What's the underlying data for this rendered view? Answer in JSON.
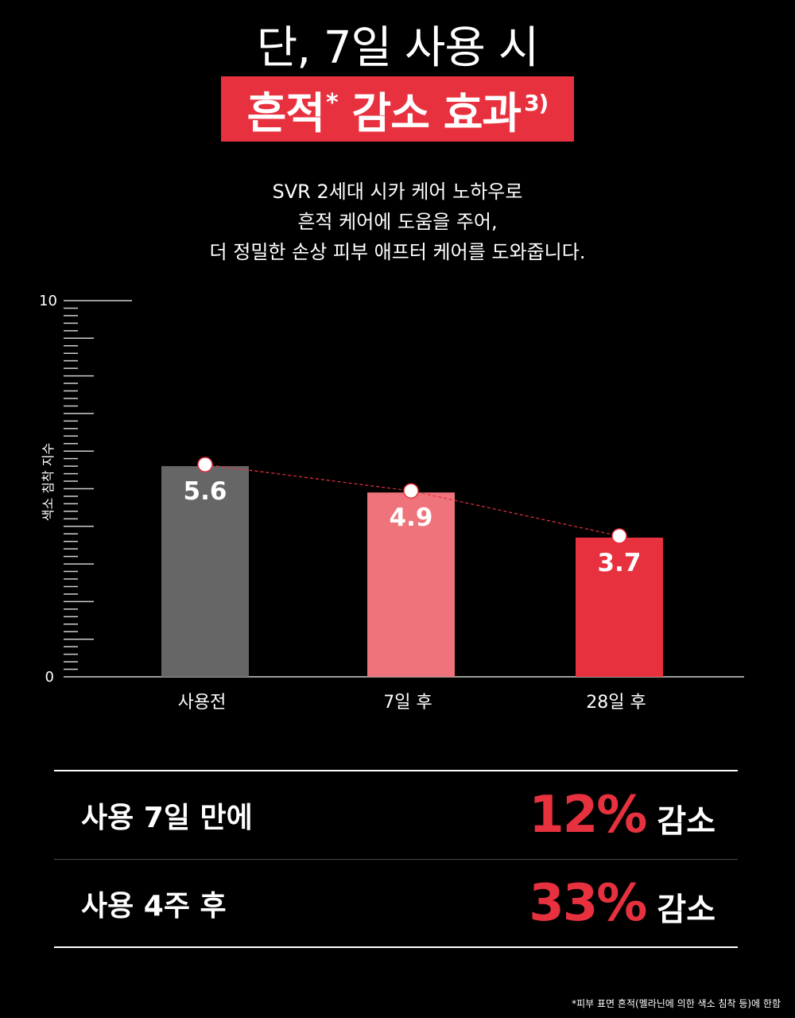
{
  "header": {
    "headline": "단, 7일 사용 시",
    "highlight": "흔적",
    "highlight_star": "*",
    "highlight_rest": " 감소 효과",
    "highlight_ref": "3)"
  },
  "description": {
    "lines": [
      "SVR 2세대 시카 케어 노하우로",
      "흔적 케어에 도움을 주어,",
      "더 정밀한 손상 피부 애프터 케어를 도와줍니다."
    ]
  },
  "chart_data": {
    "type": "bar",
    "categories": [
      "사용전",
      "7일 후",
      "28일 후"
    ],
    "values": [
      5.6,
      4.9,
      3.7
    ],
    "value_labels": [
      "5.6",
      "4.9",
      "3.7"
    ],
    "bar_colors": [
      "#666666",
      "#ef737b",
      "#e8313f"
    ],
    "ylabel": "색소 침착 지수",
    "ylim": [
      0,
      10
    ],
    "y_tick_labels": [
      "0",
      "10"
    ],
    "trend_line": true,
    "trend_color": "#e8313f",
    "grid": false
  },
  "summary": {
    "rows": [
      {
        "label": "사용 7일 만에",
        "percent": "12%",
        "suffix": "감소"
      },
      {
        "label": "사용 4주 후",
        "percent": "33%",
        "suffix": "감소"
      }
    ]
  },
  "footnote": "*피부 표면 흔적(멜라닌에 의한 색소 침착 등)에 한함",
  "colors": {
    "accent": "#e8313f",
    "background": "#000000",
    "text": "#ffffff"
  }
}
